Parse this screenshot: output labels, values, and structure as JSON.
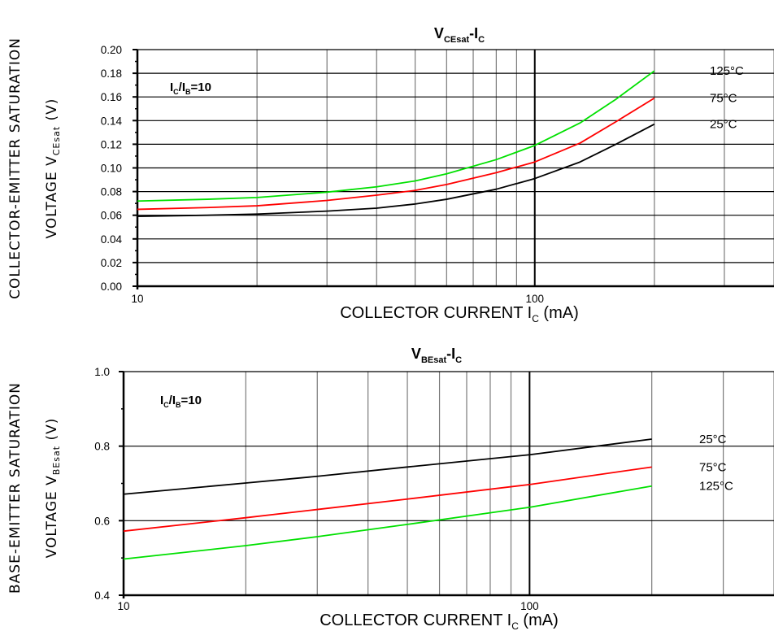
{
  "chart_data": [
    {
      "type": "line",
      "title": "V",
      "title_sub": "CEsat",
      "title_suffix": "-I",
      "title_suffix_sub": "C",
      "xlabel": "COLLECTOR CURRENT I",
      "xlabel_sub": "C",
      "xlabel_suffix": " (mA)",
      "ylabel_line1": "COLLECTOR-EMITTER SATURATION",
      "ylabel_line2": "VOLTAGE V",
      "ylabel_line2_sub": "CEsat",
      "ylabel_line2_suffix": " (V)",
      "x_scale": "log",
      "xlim": [
        10,
        400
      ],
      "ylim": [
        0,
        0.2
      ],
      "xtick_labels": [
        {
          "value": 10,
          "label": "10"
        },
        {
          "value": 100,
          "label": "100"
        }
      ],
      "ytick_labels": [
        "0.00",
        "0.02",
        "0.04",
        "0.06",
        "0.08",
        "0.10",
        "0.12",
        "0.14",
        "0.16",
        "0.18",
        "0.20"
      ],
      "annotation": {
        "main": "I",
        "sub1": "C",
        "mid": "/I",
        "sub2": "B",
        "suffix": "=10"
      },
      "grid": true,
      "series": [
        {
          "name": "125°C",
          "color": "#00e000",
          "x": [
            10,
            15,
            20,
            30,
            40,
            50,
            60,
            80,
            100,
            130,
            160,
            200
          ],
          "y": [
            0.072,
            0.0735,
            0.075,
            0.0795,
            0.084,
            0.089,
            0.095,
            0.107,
            0.119,
            0.138,
            0.158,
            0.182
          ]
        },
        {
          "name": "75°C",
          "color": "#ff0000",
          "x": [
            10,
            15,
            20,
            30,
            40,
            50,
            60,
            80,
            100,
            130,
            160,
            200
          ],
          "y": [
            0.065,
            0.0665,
            0.068,
            0.0725,
            0.077,
            0.081,
            0.086,
            0.096,
            0.105,
            0.121,
            0.139,
            0.159
          ]
        },
        {
          "name": "25°C",
          "color": "#000000",
          "x": [
            10,
            15,
            20,
            30,
            40,
            50,
            60,
            80,
            100,
            130,
            160,
            200
          ],
          "y": [
            0.059,
            0.06,
            0.061,
            0.0635,
            0.066,
            0.0695,
            0.0735,
            0.082,
            0.091,
            0.105,
            0.12,
            0.137
          ]
        }
      ]
    },
    {
      "type": "line",
      "title": "V",
      "title_sub": "BEsat",
      "title_suffix": "-I",
      "title_suffix_sub": "C",
      "xlabel": "COLLECTOR CURRENT I",
      "xlabel_sub": "C",
      "xlabel_suffix": " (mA)",
      "ylabel_line1": "BASE-EMITTER SATURATION",
      "ylabel_line2": "VOLTAGE V",
      "ylabel_line2_sub": "BEsat",
      "ylabel_line2_suffix": " (V)",
      "x_scale": "log",
      "xlim": [
        10,
        400
      ],
      "ylim": [
        0.4,
        1.0
      ],
      "xtick_labels": [
        {
          "value": 10,
          "label": "10"
        },
        {
          "value": 100,
          "label": "100"
        }
      ],
      "ytick_labels": [
        "0.4",
        "0.6",
        "0.8",
        "1.0"
      ],
      "annotation": {
        "main": "I",
        "sub1": "C",
        "mid": "/I",
        "sub2": "B",
        "suffix": "=10"
      },
      "grid": true,
      "series": [
        {
          "name": "25°C",
          "color": "#000000",
          "x": [
            10,
            20,
            30,
            50,
            100,
            200
          ],
          "y": [
            0.671,
            0.701,
            0.719,
            0.744,
            0.777,
            0.819
          ]
        },
        {
          "name": "75°C",
          "color": "#ff0000",
          "x": [
            10,
            20,
            30,
            50,
            100,
            200
          ],
          "y": [
            0.572,
            0.608,
            0.63,
            0.658,
            0.697,
            0.744
          ]
        },
        {
          "name": "125°C",
          "color": "#00e000",
          "x": [
            10,
            20,
            30,
            50,
            100,
            200
          ],
          "y": [
            0.497,
            0.533,
            0.557,
            0.59,
            0.636,
            0.693
          ]
        }
      ]
    }
  ]
}
